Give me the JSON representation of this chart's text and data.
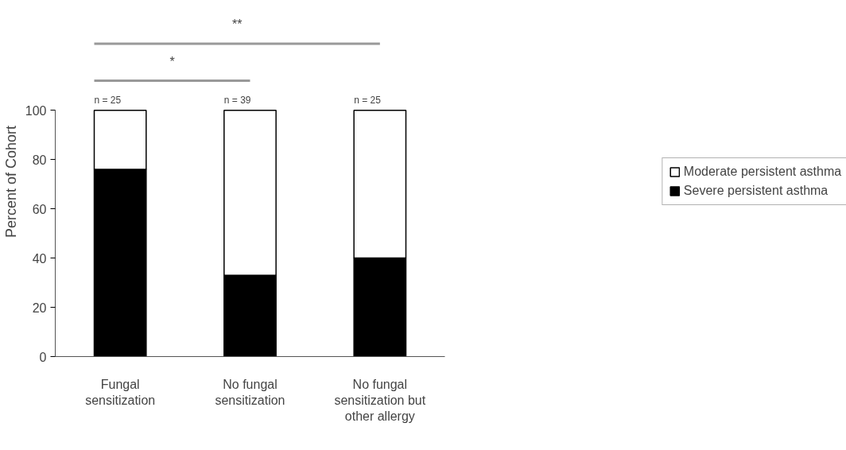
{
  "chart_data": {
    "type": "bar",
    "stacked": true,
    "ylabel": "Percent of Cohort",
    "categories": [
      "Fungal\nsensitization",
      "No fungal\nsensitization",
      "No fungal\nsensitization but\nother allergy"
    ],
    "series": [
      {
        "name": "Severe persistent asthma",
        "color": "#000000",
        "values": [
          76,
          33,
          40
        ]
      },
      {
        "name": "Moderate persistent asthma",
        "color": "#ffffff",
        "values": [
          24,
          67,
          60
        ]
      }
    ],
    "ylim": [
      0,
      100
    ],
    "yticks": [
      0,
      20,
      40,
      60,
      80,
      100
    ],
    "grid": false,
    "legend": "right",
    "annotations": [
      {
        "text": "n = 25",
        "x": "Fungal\nsensitization",
        "y": 100
      },
      {
        "text": "n = 39",
        "x": "No fungal\nsensitization",
        "y": 100
      },
      {
        "text": "n = 25",
        "x": "No fungal\nsensitization but\nother allergy",
        "y": 100
      },
      "*",
      "**"
    ]
  }
}
